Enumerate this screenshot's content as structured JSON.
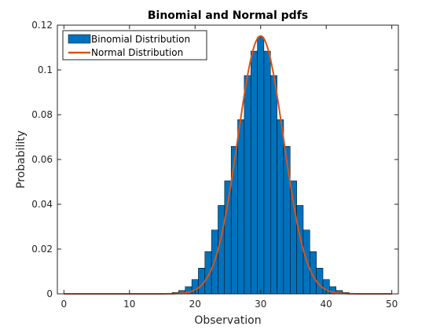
{
  "chart_data": {
    "type": "bar",
    "title": "Binomial and Normal pdfs",
    "xlabel": "Observation",
    "ylabel": "Probability",
    "xlim": [
      -1,
      51
    ],
    "ylim": [
      0,
      0.12
    ],
    "xticks": [
      0,
      10,
      20,
      30,
      40,
      50
    ],
    "yticks": [
      0,
      0.02,
      0.04,
      0.06,
      0.08,
      0.1,
      0.12
    ],
    "ytick_labels": [
      "0",
      "0.02",
      "0.04",
      "0.06",
      "0.08",
      "0.1",
      "0.12"
    ],
    "grid": false,
    "legend_position": "top-left",
    "series": [
      {
        "name": "Binomial Distribution",
        "kind": "bar",
        "color": "#0072BD",
        "x": [
          0,
          1,
          2,
          3,
          4,
          5,
          6,
          7,
          8,
          9,
          10,
          11,
          12,
          13,
          14,
          15,
          16,
          17,
          18,
          19,
          20,
          21,
          22,
          23,
          24,
          25,
          26,
          27,
          28,
          29,
          30,
          31,
          32,
          33,
          34,
          35,
          36,
          37,
          38,
          39,
          40,
          41,
          42,
          43,
          44,
          45,
          46,
          47,
          48,
          49,
          50
        ],
        "values": [
          0,
          0,
          0,
          0,
          0,
          0,
          0,
          0,
          0,
          0,
          0,
          0,
          0,
          0,
          0,
          0.0001,
          0.0002,
          0.0006,
          0.0015,
          0.0032,
          0.0064,
          0.0115,
          0.0189,
          0.0285,
          0.0395,
          0.0505,
          0.0659,
          0.0778,
          0.0975,
          0.1084,
          0.1147,
          0.1084,
          0.0975,
          0.0778,
          0.0659,
          0.0505,
          0.0395,
          0.0285,
          0.0189,
          0.0115,
          0.0064,
          0.0032,
          0.0015,
          0.0006,
          0.0002,
          0.0001,
          0,
          0,
          0,
          0,
          0
        ]
      },
      {
        "name": "Normal Distribution",
        "kind": "line",
        "color": "#D95319",
        "mean": 30,
        "std": 3.4641
      }
    ]
  }
}
